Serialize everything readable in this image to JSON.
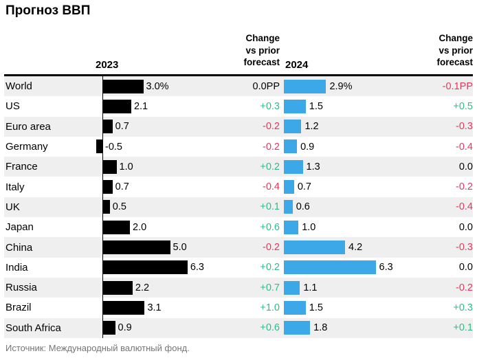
{
  "title": "Прогноз ВВП",
  "source": "Источник: Международный валютный фонд.",
  "headers": {
    "year_2023": "2023",
    "year_2024": "2024",
    "change_lines": [
      "Change",
      "vs prior",
      "forecast"
    ]
  },
  "colors": {
    "bar_2023": "#000000",
    "bar_2024": "#3DA8E8",
    "positive": "#2EBD85",
    "negative": "#E1395F",
    "neutral": "#000000",
    "row_stripe": "#EFEFEF",
    "source_text": "#757575"
  },
  "chart_data": {
    "type": "bar",
    "title": "Прогноз ВВП",
    "orientation": "horizontal",
    "unit": "percent",
    "columns": [
      "2023",
      "Change vs prior forecast",
      "2024",
      "Change vs prior forecast"
    ],
    "x_scale_note": "bars drawn from zero axis, ~20px per percentage point, stripe rows alternate",
    "rows": [
      {
        "label": "World",
        "y2023": 3.0,
        "y2023_label": "3.0%",
        "chg2023": 0.0,
        "chg2023_label": "0.0PP",
        "chg2023_tone": "zero",
        "y2024": 2.9,
        "y2024_label": "2.9%",
        "chg2024": -0.1,
        "chg2024_label": "-0.1PP",
        "chg2024_tone": "neg"
      },
      {
        "label": "US",
        "y2023": 2.1,
        "y2023_label": "2.1",
        "chg2023": 0.3,
        "chg2023_label": "+0.3",
        "chg2023_tone": "pos",
        "y2024": 1.5,
        "y2024_label": "1.5",
        "chg2024": 0.5,
        "chg2024_label": "+0.5",
        "chg2024_tone": "pos"
      },
      {
        "label": "Euro area",
        "y2023": 0.7,
        "y2023_label": "0.7",
        "chg2023": -0.2,
        "chg2023_label": "-0.2",
        "chg2023_tone": "neg",
        "y2024": 1.2,
        "y2024_label": "1.2",
        "chg2024": -0.3,
        "chg2024_label": "-0.3",
        "chg2024_tone": "neg"
      },
      {
        "label": "Germany",
        "y2023": -0.5,
        "y2023_label": "-0.5",
        "chg2023": -0.2,
        "chg2023_label": "-0.2",
        "chg2023_tone": "neg",
        "y2024": 0.9,
        "y2024_label": "0.9",
        "chg2024": -0.4,
        "chg2024_label": "-0.4",
        "chg2024_tone": "neg"
      },
      {
        "label": "France",
        "y2023": 1.0,
        "y2023_label": "1.0",
        "chg2023": 0.2,
        "chg2023_label": "+0.2",
        "chg2023_tone": "pos",
        "y2024": 1.3,
        "y2024_label": "1.3",
        "chg2024": 0.0,
        "chg2024_label": "0.0",
        "chg2024_tone": "zero"
      },
      {
        "label": "Italy",
        "y2023": 0.7,
        "y2023_label": "0.7",
        "chg2023": -0.4,
        "chg2023_label": "-0.4",
        "chg2023_tone": "neg",
        "y2024": 0.7,
        "y2024_label": "0.7",
        "chg2024": -0.2,
        "chg2024_label": "-0.2",
        "chg2024_tone": "neg"
      },
      {
        "label": "UK",
        "y2023": 0.5,
        "y2023_label": "0.5",
        "chg2023": 0.1,
        "chg2023_label": "+0.1",
        "chg2023_tone": "pos",
        "y2024": 0.6,
        "y2024_label": "0.6",
        "chg2024": -0.4,
        "chg2024_label": "-0.4",
        "chg2024_tone": "neg"
      },
      {
        "label": "Japan",
        "y2023": 2.0,
        "y2023_label": "2.0",
        "chg2023": 0.6,
        "chg2023_label": "+0.6",
        "chg2023_tone": "pos",
        "y2024": 1.0,
        "y2024_label": "1.0",
        "chg2024": 0.0,
        "chg2024_label": "0.0",
        "chg2024_tone": "zero"
      },
      {
        "label": "China",
        "y2023": 5.0,
        "y2023_label": "5.0",
        "chg2023": -0.2,
        "chg2023_label": "-0.2",
        "chg2023_tone": "neg",
        "y2024": 4.2,
        "y2024_label": "4.2",
        "chg2024": -0.3,
        "chg2024_label": "-0.3",
        "chg2024_tone": "neg"
      },
      {
        "label": "India",
        "y2023": 6.3,
        "y2023_label": "6.3",
        "chg2023": 0.2,
        "chg2023_label": "+0.2",
        "chg2023_tone": "pos",
        "y2024": 6.3,
        "y2024_label": "6.3",
        "chg2024": 0.0,
        "chg2024_label": "0.0",
        "chg2024_tone": "zero"
      },
      {
        "label": "Russia",
        "y2023": 2.2,
        "y2023_label": "2.2",
        "chg2023": 0.7,
        "chg2023_label": "+0.7",
        "chg2023_tone": "pos",
        "y2024": 1.1,
        "y2024_label": "1.1",
        "chg2024": -0.2,
        "chg2024_label": "-0.2",
        "chg2024_tone": "neg"
      },
      {
        "label": "Brazil",
        "y2023": 3.1,
        "y2023_label": "3.1",
        "chg2023": 1.0,
        "chg2023_label": "+1.0",
        "chg2023_tone": "pos",
        "y2024": 1.5,
        "y2024_label": "1.5",
        "chg2024": 0.3,
        "chg2024_label": "+0.3",
        "chg2024_tone": "pos"
      },
      {
        "label": "South Africa",
        "y2023": 0.9,
        "y2023_label": "0.9",
        "chg2023": 0.6,
        "chg2023_label": "+0.6",
        "chg2023_tone": "pos",
        "y2024": 1.8,
        "y2024_label": "1.8",
        "chg2024": 0.1,
        "chg2024_label": "+0.1",
        "chg2024_tone": "pos"
      }
    ]
  }
}
